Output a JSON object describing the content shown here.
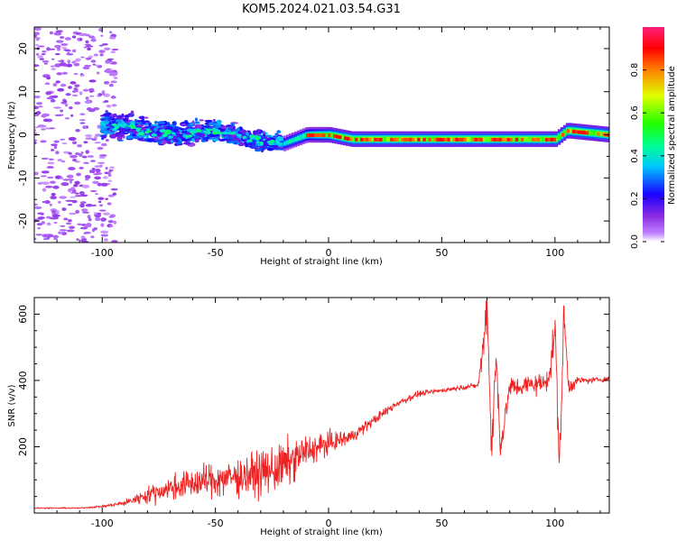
{
  "title": "KOM5.2024.021.03.54.G31",
  "chart_data": [
    {
      "type": "heatmap",
      "xlabel": "Height of straight line (km)",
      "ylabel": "Frequency (Hz)",
      "xlim": [
        -130,
        124
      ],
      "ylim": [
        -25,
        25
      ],
      "xticks": [
        -100,
        -50,
        0,
        50,
        100
      ],
      "yticks": [
        -20,
        -10,
        0,
        10,
        20
      ],
      "colorbar": {
        "label": "Normalized spectral amplitude",
        "range": [
          0,
          1
        ],
        "ticks": [
          0.0,
          0.2,
          0.4,
          0.6,
          0.8
        ],
        "tick_labels": [
          "0.0",
          "0.2",
          "0.4",
          "0.6",
          "0.8"
        ],
        "colormap": "gist_rainbow"
      },
      "regions": [
        {
          "description": "scattered weak noise",
          "x_range": [
            -130,
            -100
          ],
          "freq_range": [
            -25,
            25
          ],
          "amplitude": 0.05
        },
        {
          "description": "broad signal band",
          "x_range": [
            -100,
            -20
          ],
          "freq_range": [
            -6,
            6
          ],
          "amplitude": 0.3
        },
        {
          "description": "narrow strong tone",
          "x_range": [
            -20,
            124
          ],
          "freq_range": [
            -2,
            2
          ],
          "amplitude": 0.9
        }
      ],
      "center_frequency_track": [
        {
          "x": -90,
          "f": 2
        },
        {
          "x": -70,
          "f": 0
        },
        {
          "x": -50,
          "f": 1
        },
        {
          "x": -35,
          "f": -1
        },
        {
          "x": -20,
          "f": -2
        },
        {
          "x": -10,
          "f": 0
        },
        {
          "x": 0,
          "f": 0
        },
        {
          "x": 10,
          "f": -1
        },
        {
          "x": 30,
          "f": -1
        },
        {
          "x": 50,
          "f": -1
        },
        {
          "x": 65,
          "f": -1
        },
        {
          "x": 75,
          "f": -1
        },
        {
          "x": 90,
          "f": -1
        },
        {
          "x": 100,
          "f": -1
        },
        {
          "x": 105,
          "f": 1
        },
        {
          "x": 124,
          "f": 0
        }
      ]
    },
    {
      "type": "line",
      "xlabel": "Height of straight line (km)",
      "ylabel": "SNR (v/v)",
      "xlim": [
        -130,
        124
      ],
      "ylim": [
        0,
        650
      ],
      "xticks": [
        -100,
        -50,
        0,
        50,
        100
      ],
      "yticks": [
        200,
        400,
        600
      ],
      "series": [
        {
          "color": "#ee2222",
          "x": [
            -130,
            -110,
            -100,
            -90,
            -80,
            -70,
            -60,
            -50,
            -40,
            -30,
            -20,
            -10,
            0,
            10,
            20,
            30,
            40,
            50,
            60,
            66,
            68,
            70,
            72,
            74,
            76,
            80,
            85,
            90,
            95,
            98,
            100,
            102,
            104,
            106,
            110,
            115,
            124
          ],
          "y": [
            15,
            15,
            20,
            30,
            55,
            75,
            90,
            100,
            110,
            120,
            140,
            185,
            210,
            230,
            280,
            330,
            360,
            370,
            380,
            385,
            480,
            640,
            190,
            470,
            200,
            380,
            380,
            390,
            390,
            430,
            560,
            140,
            600,
            380,
            400,
            400,
            405
          ],
          "noise": [
            2,
            2,
            4,
            10,
            30,
            45,
            55,
            65,
            70,
            80,
            90,
            60,
            40,
            25,
            18,
            15,
            10,
            8,
            8,
            10,
            60,
            80,
            80,
            80,
            60,
            40,
            35,
            40,
            40,
            50,
            70,
            80,
            80,
            30,
            15,
            10,
            10
          ]
        }
      ]
    }
  ]
}
